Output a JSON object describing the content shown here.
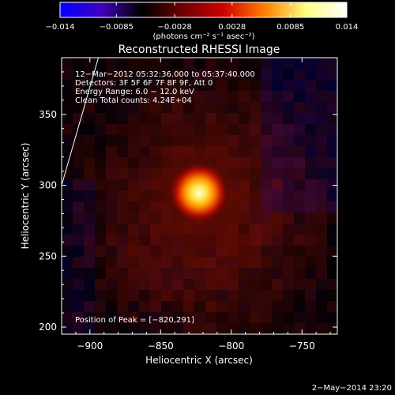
{
  "chart_data": {
    "type": "heatmap",
    "title": "Reconstructed RHESSI Image",
    "xlabel": "Heliocentric X (arcsec)",
    "ylabel": "Heliocentric Y (arcsec)",
    "xlim": [
      -920,
      -725
    ],
    "ylim": [
      195,
      390
    ],
    "xticks": [
      -900,
      -850,
      -800,
      -750
    ],
    "yticks": [
      200,
      250,
      300,
      350
    ],
    "xtick_labels": [
      "−900",
      "−850",
      "−800",
      "−750"
    ],
    "ytick_labels": [
      "200",
      "250",
      "300",
      "350"
    ],
    "colorbar": {
      "min": -0.014,
      "max": 0.014,
      "ticks": [
        -0.014,
        -0.0085,
        -0.0028,
        0.0028,
        0.0085,
        0.014
      ],
      "tick_labels": [
        "−0.014",
        "−0.0085",
        "−0.0028",
        "0.0028",
        "0.0085",
        "0.014"
      ],
      "label": "(photons cm⁻² s⁻¹ asec⁻²)",
      "colors": [
        "#0000ff",
        "#4000c0",
        "#000000",
        "#700000",
        "#d00000",
        "#ff8000",
        "#ffff80",
        "#ffffff"
      ]
    },
    "info_lines": [
      "12−Mar−2012 05:32:36.000 to 05:37:40.000",
      "Detectors: 3F 5F 6F 7F 8F 9F, Att 0",
      "Energy Range: 6.0 − 12.0 keV",
      "Clean     Total counts: 4.24E+04"
    ],
    "peak_label": "Position of Peak = [−820,291]",
    "peak": {
      "x": -820,
      "y": 291,
      "value": 0.014
    },
    "limb_line": [
      [
        -920,
        300
      ],
      [
        -894,
        390
      ]
    ],
    "date_stamp": "2−May−2014 23:20"
  }
}
